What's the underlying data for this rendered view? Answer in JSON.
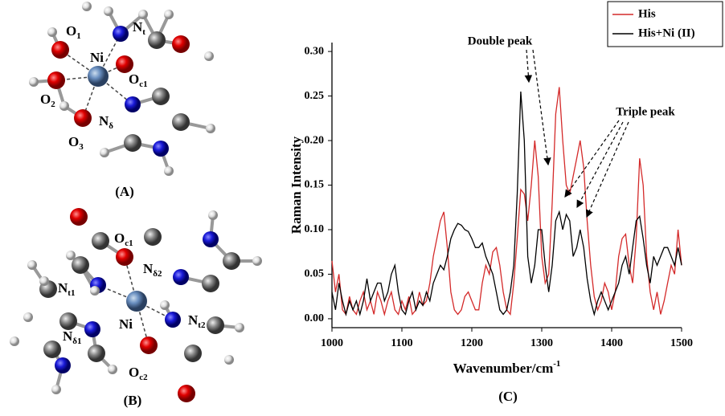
{
  "panels": [
    {
      "label": "(A)",
      "atoms": [
        {
          "base": "O",
          "sub": "1"
        },
        {
          "base": "Ni",
          "sub": ""
        },
        {
          "base": "N",
          "sub": "t"
        },
        {
          "base": "O",
          "sub": "2"
        },
        {
          "base": "O",
          "sub": "c1"
        },
        {
          "base": "N",
          "sub": "δ"
        },
        {
          "base": "O",
          "sub": "3"
        }
      ]
    },
    {
      "label": "(B)",
      "atoms": [
        {
          "base": "O",
          "sub": "c1"
        },
        {
          "base": "N",
          "sub": "δ2"
        },
        {
          "base": "N",
          "sub": "t1"
        },
        {
          "base": "Ni",
          "sub": ""
        },
        {
          "base": "N",
          "sub": "t2"
        },
        {
          "base": "N",
          "sub": "δ1"
        },
        {
          "base": "O",
          "sub": "c2"
        }
      ]
    }
  ],
  "chart_data": {
    "type": "line",
    "panel_label": "(C)",
    "x_label": "Wavenumber/cm",
    "x_label_sup": "-1",
    "y_label": "Raman Intensity",
    "annotations": [
      "Double peak",
      "Triple peak"
    ],
    "x": [
      1000,
      1005,
      1010,
      1015,
      1020,
      1025,
      1030,
      1035,
      1040,
      1045,
      1050,
      1055,
      1060,
      1065,
      1070,
      1075,
      1080,
      1085,
      1090,
      1095,
      1100,
      1105,
      1110,
      1115,
      1120,
      1125,
      1130,
      1135,
      1140,
      1145,
      1150,
      1155,
      1160,
      1165,
      1170,
      1175,
      1180,
      1185,
      1190,
      1195,
      1200,
      1205,
      1210,
      1215,
      1220,
      1225,
      1230,
      1235,
      1240,
      1245,
      1250,
      1255,
      1260,
      1265,
      1270,
      1275,
      1280,
      1285,
      1290,
      1295,
      1300,
      1305,
      1310,
      1315,
      1320,
      1325,
      1330,
      1335,
      1340,
      1345,
      1350,
      1355,
      1360,
      1365,
      1370,
      1375,
      1380,
      1385,
      1390,
      1395,
      1400,
      1405,
      1410,
      1415,
      1420,
      1425,
      1430,
      1435,
      1440,
      1445,
      1450,
      1455,
      1460,
      1465,
      1470,
      1475,
      1480,
      1485,
      1490,
      1495,
      1500
    ],
    "series": [
      {
        "name": "His",
        "color": "#d42a2a",
        "values": [
          0.065,
          0.03,
          0.05,
          0.01,
          0.005,
          0.025,
          0.01,
          0.005,
          0.02,
          0.03,
          0.01,
          0.02,
          0.005,
          0.03,
          0.02,
          0.005,
          0.02,
          0.03,
          0.01,
          0.005,
          0.02,
          0.01,
          0.025,
          0.005,
          0.01,
          0.03,
          0.015,
          0.02,
          0.04,
          0.07,
          0.09,
          0.11,
          0.12,
          0.08,
          0.03,
          0.01,
          0.005,
          0.01,
          0.025,
          0.03,
          0.02,
          0.01,
          0.01,
          0.04,
          0.06,
          0.05,
          0.075,
          0.08,
          0.06,
          0.03,
          0.01,
          0.005,
          0.04,
          0.09,
          0.145,
          0.14,
          0.11,
          0.15,
          0.2,
          0.16,
          0.07,
          0.04,
          0.05,
          0.13,
          0.23,
          0.26,
          0.2,
          0.15,
          0.14,
          0.16,
          0.18,
          0.2,
          0.17,
          0.11,
          0.06,
          0.025,
          0.01,
          0.02,
          0.04,
          0.03,
          0.01,
          0.03,
          0.07,
          0.09,
          0.095,
          0.06,
          0.04,
          0.09,
          0.18,
          0.15,
          0.07,
          0.03,
          0.01,
          0.03,
          0.005,
          0.02,
          0.04,
          0.06,
          0.05,
          0.1,
          0.06
        ]
      },
      {
        "name": "His+Ni (II)",
        "color": "#000000",
        "values": [
          0.03,
          0.01,
          0.04,
          0.02,
          0.005,
          0.02,
          0.01,
          0.02,
          0.005,
          0.02,
          0.045,
          0.02,
          0.03,
          0.04,
          0.04,
          0.02,
          0.03,
          0.05,
          0.06,
          0.03,
          0.01,
          0.005,
          0.02,
          0.03,
          0.01,
          0.02,
          0.015,
          0.03,
          0.02,
          0.04,
          0.05,
          0.06,
          0.055,
          0.07,
          0.09,
          0.1,
          0.107,
          0.105,
          0.1,
          0.098,
          0.09,
          0.08,
          0.08,
          0.085,
          0.07,
          0.06,
          0.05,
          0.03,
          0.01,
          0.005,
          0.01,
          0.03,
          0.06,
          0.14,
          0.255,
          0.2,
          0.07,
          0.04,
          0.06,
          0.1,
          0.1,
          0.06,
          0.03,
          0.06,
          0.11,
          0.12,
          0.1,
          0.117,
          0.11,
          0.07,
          0.08,
          0.1,
          0.08,
          0.045,
          0.02,
          0.005,
          0.02,
          0.03,
          0.02,
          0.01,
          0.02,
          0.03,
          0.04,
          0.06,
          0.07,
          0.05,
          0.08,
          0.11,
          0.115,
          0.09,
          0.06,
          0.04,
          0.07,
          0.06,
          0.07,
          0.08,
          0.08,
          0.07,
          0.06,
          0.08,
          0.06
        ]
      }
    ],
    "xlim": [
      1000,
      1500
    ],
    "xticks": [
      1000,
      1100,
      1200,
      1300,
      1400,
      1500
    ],
    "ylim": [
      -0.01,
      0.31
    ],
    "yticks": [
      {
        "value": 0,
        "label": "0.00"
      },
      {
        "value": 0.05,
        "label": "0.05"
      },
      {
        "value": 0.1,
        "label": "0.10"
      },
      {
        "value": 0.15,
        "label": "0.15"
      },
      {
        "value": 0.2,
        "label": "0.20"
      },
      {
        "value": 0.25,
        "label": "0.25"
      },
      {
        "value": 0.3,
        "label": "0.30"
      }
    ],
    "legend": "upper right"
  }
}
